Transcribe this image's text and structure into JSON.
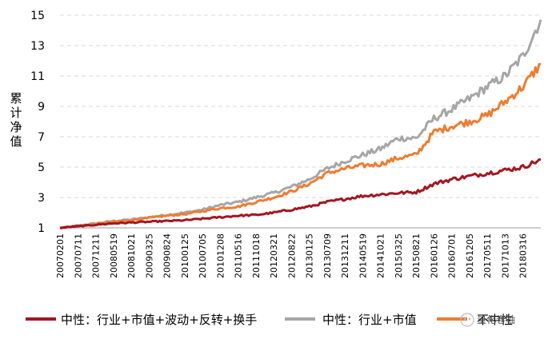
{
  "chart_data": {
    "type": "line",
    "title": "",
    "xlabel": "",
    "ylabel": "累计净值",
    "ylim": [
      1,
      15
    ],
    "yticks": [
      1,
      3,
      5,
      7,
      9,
      11,
      13,
      15
    ],
    "x_tick_labels": [
      "20070201",
      "20070711",
      "20071211",
      "20080519",
      "20081021",
      "20090325",
      "20090824",
      "20100125",
      "20100705",
      "20101208",
      "20110516",
      "20111018",
      "20120321",
      "20120822",
      "20130125",
      "20130709",
      "20131211",
      "20140519",
      "20141021",
      "20150325",
      "20150821",
      "20160126",
      "20160701",
      "20161205",
      "20170511",
      "20171013",
      "20180316"
    ],
    "x": [
      "20070201",
      "20070711",
      "20071211",
      "20080519",
      "20081021",
      "20090325",
      "20090824",
      "20100125",
      "20100705",
      "20101208",
      "20110516",
      "20111018",
      "20120321",
      "20120822",
      "20130125",
      "20130709",
      "20131211",
      "20140519",
      "20141021",
      "20150325",
      "20150821",
      "20160126",
      "20160701",
      "20161205",
      "20170511",
      "20171013",
      "20180316",
      "20180801"
    ],
    "grid": true,
    "legend_position": "bottom",
    "series": [
      {
        "name": "中性：行业+市值+波动+反转+换手",
        "color": "#a31621",
        "values": [
          1.0,
          1.1,
          1.2,
          1.3,
          1.35,
          1.4,
          1.45,
          1.5,
          1.6,
          1.7,
          1.8,
          1.85,
          2.0,
          2.2,
          2.4,
          2.7,
          2.9,
          3.1,
          3.2,
          3.3,
          3.35,
          3.9,
          4.2,
          4.4,
          4.6,
          4.8,
          5.0,
          5.5
        ]
      },
      {
        "name": "中性：行业+市值",
        "color": "#a6a6a6",
        "values": [
          1.0,
          1.15,
          1.3,
          1.45,
          1.55,
          1.7,
          1.85,
          2.0,
          2.2,
          2.5,
          2.7,
          3.0,
          3.3,
          3.7,
          4.2,
          4.9,
          5.4,
          5.8,
          6.2,
          6.9,
          6.9,
          8.2,
          8.8,
          9.5,
          10.3,
          11.0,
          12.3,
          14.7
        ]
      },
      {
        "name": "不中性",
        "color": "#ed7d31",
        "values": [
          1.0,
          1.1,
          1.25,
          1.4,
          1.5,
          1.65,
          1.8,
          1.9,
          2.1,
          2.3,
          2.4,
          2.7,
          3.0,
          3.4,
          3.9,
          4.6,
          4.9,
          5.1,
          5.2,
          5.6,
          5.8,
          7.3,
          7.7,
          8.0,
          8.4,
          9.3,
          10.3,
          11.8
        ]
      }
    ]
  },
  "watermark": {
    "text": "量化卷轴"
  }
}
